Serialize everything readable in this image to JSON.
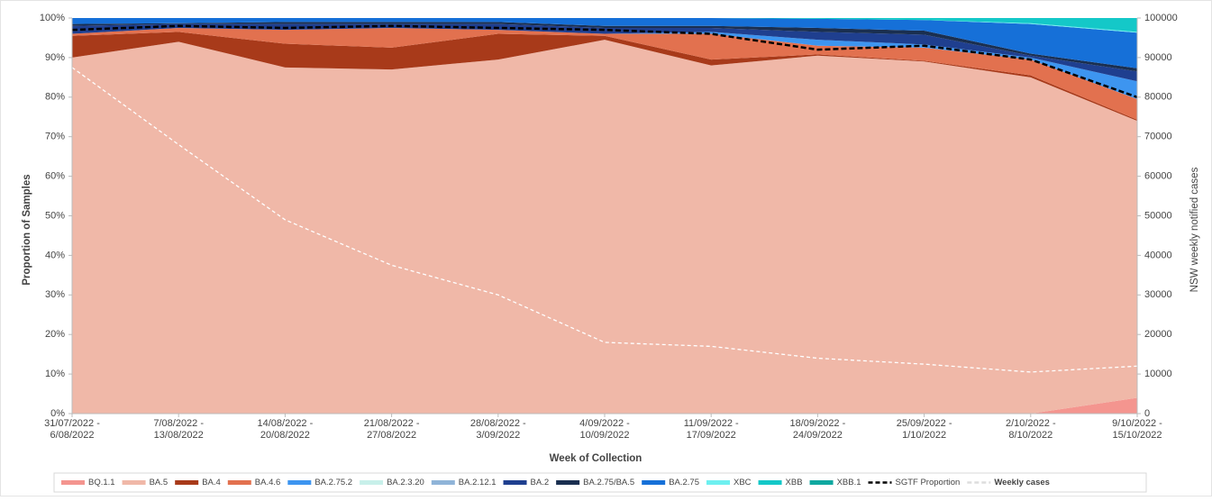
{
  "chart_data": {
    "type": "stacked-area",
    "x_label": "Week of Collection",
    "y_label": "Proportion of Samples",
    "y2_label": "NSW weekly notified cases",
    "categories": [
      "31/07/2022 - 6/08/2022",
      "7/08/2022 - 13/08/2022",
      "14/08/2022 - 20/08/2022",
      "21/08/2022 - 27/08/2022",
      "28/08/2022 - 3/09/2022",
      "4/09/2022 - 10/09/2022",
      "11/09/2022 - 17/09/2022",
      "18/09/2022 - 24/09/2022",
      "25/09/2022 - 1/10/2022",
      "2/10/2022 - 8/10/2022",
      "9/10/2022 - 15/10/2022"
    ],
    "ylim": [
      0,
      100
    ],
    "yticks": [
      {
        "value": 0,
        "label": "0%"
      },
      {
        "value": 10,
        "label": "10%"
      },
      {
        "value": 20,
        "label": "20%"
      },
      {
        "value": 30,
        "label": "30%"
      },
      {
        "value": 40,
        "label": "40%"
      },
      {
        "value": 50,
        "label": "50%"
      },
      {
        "value": 60,
        "label": "60%"
      },
      {
        "value": 70,
        "label": "70%"
      },
      {
        "value": 80,
        "label": "80%"
      },
      {
        "value": 90,
        "label": "90%"
      },
      {
        "value": 100,
        "label": "100%"
      }
    ],
    "y2lim": [
      0,
      100000
    ],
    "y2ticks": [
      0,
      10000,
      20000,
      30000,
      40000,
      50000,
      60000,
      70000,
      80000,
      90000,
      100000
    ],
    "grid": false,
    "legend": "bottom",
    "series": [
      {
        "name": "BQ.1.1",
        "color": "#f4958f",
        "values": [
          0,
          0,
          0,
          0,
          0,
          0,
          0,
          0,
          0,
          0,
          4
        ]
      },
      {
        "name": "BA.5",
        "color": "#f0b8a8",
        "values": [
          90,
          94,
          87.5,
          87,
          89.5,
          94.5,
          88,
          90.5,
          89,
          85,
          70
        ]
      },
      {
        "name": "BA.4",
        "color": "#a83a1a",
        "values": [
          5.5,
          2.5,
          6,
          5.5,
          6.5,
          1,
          1.5,
          0.3,
          0.2,
          0.5,
          0.3
        ]
      },
      {
        "name": "BA.4.6",
        "color": "#e2714f",
        "values": [
          0.5,
          1,
          3.5,
          5,
          1,
          0.5,
          6.5,
          2.2,
          3.3,
          4,
          5.2
        ]
      },
      {
        "name": "BA.2.75.2",
        "color": "#3d95f0",
        "values": [
          0,
          0,
          0,
          0,
          0,
          0,
          0.5,
          1.5,
          0.8,
          0.5,
          4.5
        ]
      },
      {
        "name": "BA.2.3.20",
        "color": "#c8f0ea",
        "values": [
          0,
          0,
          0,
          0,
          0,
          0,
          0,
          0,
          0,
          0,
          0
        ]
      },
      {
        "name": "BA.2.12.1",
        "color": "#8fb4d8",
        "values": [
          0,
          0,
          0,
          0,
          0,
          0,
          0,
          0,
          0,
          0,
          0
        ]
      },
      {
        "name": "BA.2",
        "color": "#1f3f8f",
        "values": [
          2,
          1,
          1.5,
          1,
          1.5,
          1.5,
          1,
          2,
          2.5,
          0.5,
          2.5
        ]
      },
      {
        "name": "BA.2.75/BA.5",
        "color": "#1a2f50",
        "values": [
          0.5,
          0.2,
          0.5,
          0.5,
          0.5,
          0.5,
          0.5,
          1,
          1,
          0.5,
          0.8
        ]
      },
      {
        "name": "BA.2.75",
        "color": "#1670d8",
        "values": [
          1.5,
          1.3,
          1,
          1,
          1,
          2,
          2,
          2.3,
          2.7,
          7.5,
          9
        ]
      },
      {
        "name": "XBC",
        "color": "#6ef0f0",
        "values": [
          0,
          0,
          0,
          0,
          0,
          0,
          0,
          0,
          0,
          0.2,
          0.2
        ]
      },
      {
        "name": "XBB",
        "color": "#14c8c8",
        "values": [
          0,
          0,
          0,
          0,
          0,
          0,
          0,
          0.2,
          0.5,
          1.3,
          3.5
        ]
      },
      {
        "name": "XBB.1",
        "color": "#10a8a0",
        "values": [
          0,
          0,
          0,
          0,
          0,
          0,
          0,
          0,
          0,
          0,
          0
        ]
      },
      {
        "name": "SGTF Proportion",
        "type": "line",
        "color": "#000000",
        "dashed": true,
        "values": [
          97,
          98,
          97.5,
          98,
          97.5,
          97,
          96,
          92,
          93,
          89.5,
          80
        ]
      },
      {
        "name": "Weekly cases",
        "type": "line",
        "axis": "y2",
        "color": "#ffffff",
        "dashed": true,
        "values": [
          87500,
          68000,
          49000,
          37500,
          30000,
          18000,
          17000,
          14000,
          12500,
          10500,
          12000
        ]
      }
    ]
  }
}
